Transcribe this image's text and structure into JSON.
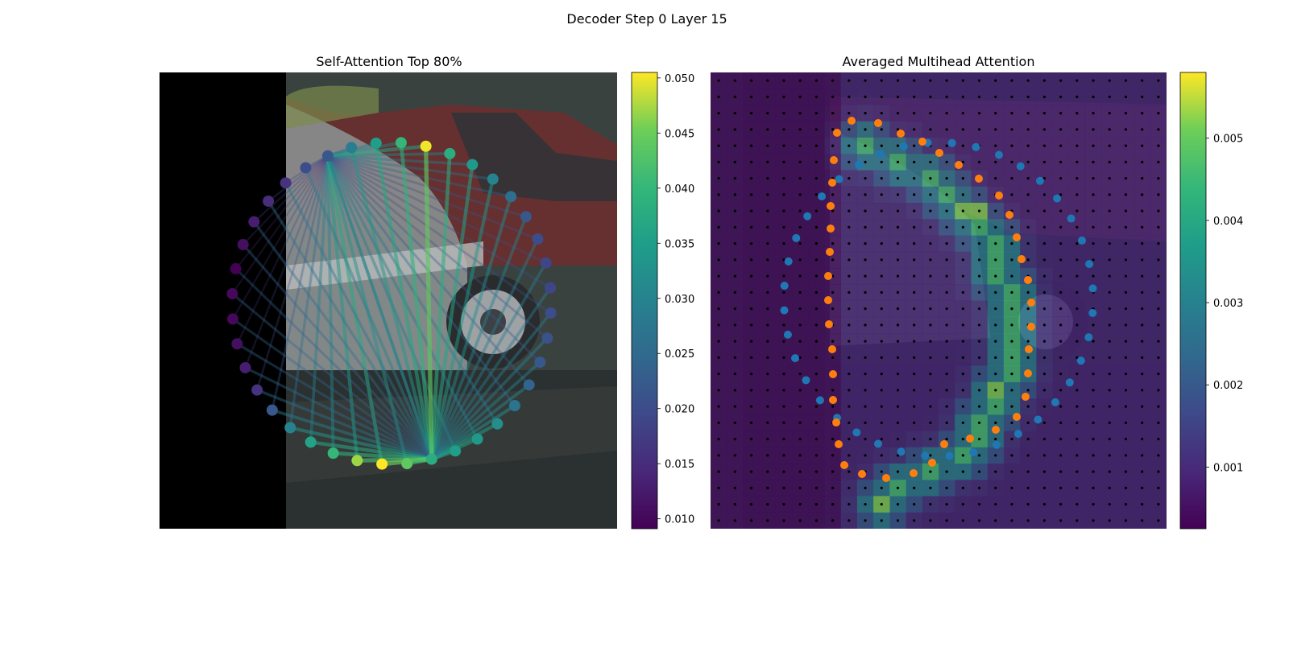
{
  "figure": {
    "suptitle": "Decoder Step 0 Layer 15"
  },
  "chart_data": [
    {
      "type": "graph",
      "title": "Self-Attention Top 80%",
      "colormap": "viridis",
      "colorbar": {
        "range": [
          0.0091,
          0.0505
        ],
        "ticks": [
          "0.010",
          "0.015",
          "0.020",
          "0.025",
          "0.030",
          "0.035",
          "0.040",
          "0.045",
          "0.050"
        ],
        "tick_values": [
          0.01,
          0.015,
          0.02,
          0.025,
          0.03,
          0.035,
          0.04,
          0.045,
          0.05
        ]
      },
      "node_count": 40,
      "node_values": [
        0.04,
        0.035,
        0.029,
        0.022,
        0.02,
        0.016,
        0.015,
        0.013,
        0.011,
        0.009,
        0.01,
        0.01,
        0.011,
        0.013,
        0.016,
        0.022,
        0.03,
        0.036,
        0.04,
        0.047,
        0.052,
        0.044,
        0.038,
        0.035,
        0.034,
        0.032,
        0.027,
        0.024,
        0.022,
        0.021,
        0.02,
        0.019,
        0.019,
        0.02,
        0.022,
        0.026,
        0.03,
        0.034,
        0.038,
        0.05
      ],
      "edge_hubs": [
        3,
        22
      ],
      "background": "photo: parked silver and red cars, left strip black"
    },
    {
      "type": "heatmap",
      "title": "Averaged Multihead Attention",
      "colormap": "viridis",
      "grid": [
        28,
        28
      ],
      "colorbar": {
        "range": [
          0.00025,
          0.0058
        ],
        "ticks": [
          "0.001",
          "0.002",
          "0.003",
          "0.004",
          "0.005"
        ],
        "tick_values": [
          0.001,
          0.002,
          0.003,
          0.004,
          0.005
        ]
      },
      "series": [
        {
          "marker": "blue",
          "color": "#1f77b4"
        },
        {
          "marker": "orange",
          "color": "#ff7f0e"
        }
      ],
      "background": "photo: parked cars, tinted"
    }
  ]
}
